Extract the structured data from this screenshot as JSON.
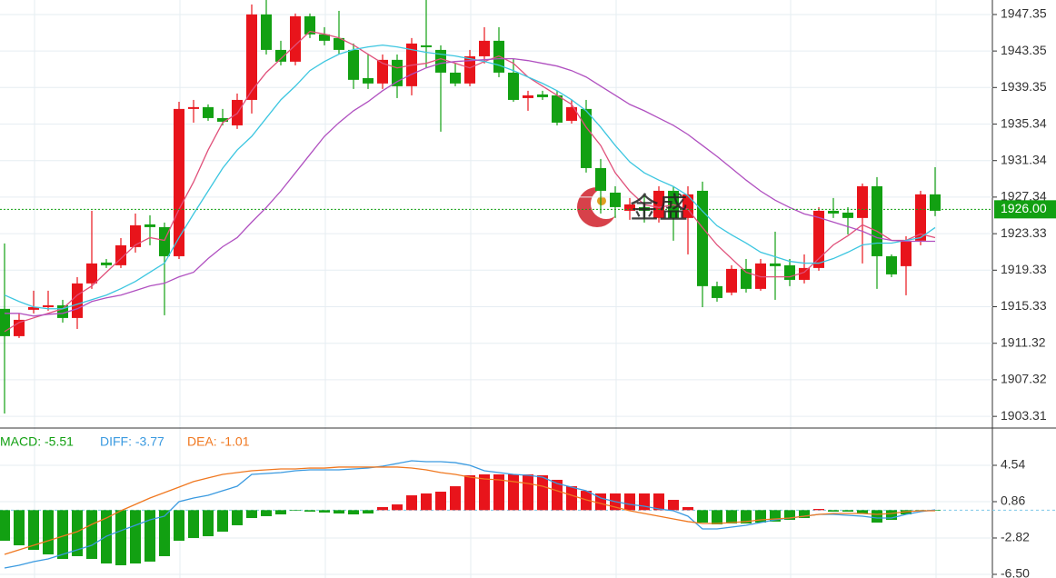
{
  "chart_data": [
    {
      "type": "candlestick",
      "up_color": "#e8141b",
      "down_color": "#12a012",
      "watermark": "金盛",
      "open": [
        1915.09,
        1912.1,
        1914.99,
        1915.28,
        1915.48,
        1914.09,
        1917.88,
        1920.17,
        1919.87,
        1921.86,
        1924.35,
        1924.05,
        1920.86,
        1937.0,
        1937.2,
        1936.0,
        1935.2,
        1937.99,
        1947.36,
        1943.47,
        1942.18,
        1947.16,
        1945.17,
        1944.77,
        1943.47,
        1940.38,
        1939.79,
        1942.38,
        1939.49,
        1943.97,
        1943.47,
        1940.98,
        1939.79,
        1942.77,
        1944.47,
        1940.98,
        1938.19,
        1938.59,
        1938.49,
        1935.7,
        1937.0,
        1930.52,
        1927.83,
        1925.84,
        1926.24,
        1925.05,
        1928.03,
        1925.05,
        1928.03,
        1917.58,
        1916.88,
        1919.47,
        1917.28,
        1920.07,
        1919.87,
        1918.27,
        1919.57,
        1925.84,
        1925.64,
        1925.05,
        1928.53,
        1920.86,
        1919.77,
        1922.56,
        1927.64
      ],
      "high": [
        1922.26,
        1914.59,
        1917.08,
        1917.08,
        1916.08,
        1918.57,
        1925.84,
        1920.56,
        1922.85,
        1925.54,
        1925.35,
        1924.55,
        1937.79,
        1937.99,
        1937.5,
        1937.0,
        1938.69,
        1948.45,
        1948.95,
        1944.47,
        1947.46,
        1947.46,
        1945.96,
        1947.75,
        1944.17,
        1942.97,
        1942.97,
        1942.97,
        1944.77,
        1948.95,
        1943.97,
        1941.98,
        1943.47,
        1945.96,
        1945.96,
        1942.48,
        1938.99,
        1938.99,
        1938.99,
        1937.99,
        1937.99,
        1931.52,
        1928.53,
        1927.24,
        1927.54,
        1928.53,
        1928.53,
        1928.53,
        1929.03,
        1918.08,
        1919.87,
        1920.56,
        1920.56,
        1923.55,
        1920.56,
        1921.06,
        1926.24,
        1927.24,
        1926.24,
        1928.83,
        1929.53,
        1921.06,
        1923.05,
        1928.03,
        1930.62
      ],
      "low": [
        1903.63,
        1911.9,
        1914.59,
        1914.89,
        1913.59,
        1912.89,
        1917.28,
        1919.57,
        1919.57,
        1921.26,
        1922.06,
        1914.39,
        1920.56,
        1935.5,
        1935.7,
        1935.2,
        1934.81,
        1936.5,
        1942.97,
        1941.78,
        1941.78,
        1944.77,
        1943.97,
        1942.97,
        1939.19,
        1939.19,
        1939.19,
        1938.19,
        1938.49,
        1941.48,
        1934.51,
        1939.49,
        1939.49,
        1941.98,
        1940.48,
        1937.79,
        1936.8,
        1937.99,
        1935.2,
        1935.4,
        1930.03,
        1925.54,
        1925.05,
        1924.85,
        1924.55,
        1924.55,
        1922.56,
        1921.06,
        1915.28,
        1915.88,
        1916.58,
        1916.88,
        1917.08,
        1916.08,
        1917.58,
        1917.88,
        1919.27,
        1925.05,
        1923.25,
        1920.07,
        1917.28,
        1918.57,
        1916.58,
        1922.06,
        1925.25
      ],
      "close": [
        1912.1,
        1913.89,
        1915.28,
        1915.48,
        1914.09,
        1917.88,
        1920.07,
        1919.87,
        1922.06,
        1924.25,
        1924.05,
        1920.86,
        1937.0,
        1937.2,
        1936.0,
        1935.6,
        1937.99,
        1947.36,
        1943.47,
        1942.18,
        1947.16,
        1945.17,
        1944.47,
        1943.47,
        1940.19,
        1939.79,
        1942.38,
        1939.49,
        1944.17,
        1943.77,
        1940.98,
        1939.79,
        1942.77,
        1944.47,
        1940.98,
        1937.99,
        1938.49,
        1938.29,
        1935.5,
        1937.2,
        1930.52,
        1928.03,
        1926.24,
        1926.54,
        1925.84,
        1928.03,
        1925.05,
        1927.64,
        1917.58,
        1916.28,
        1919.47,
        1917.28,
        1920.07,
        1919.77,
        1918.27,
        1919.57,
        1925.84,
        1925.54,
        1925.05,
        1928.53,
        1920.86,
        1918.87,
        1922.56,
        1927.64,
        1925.84
      ],
      "series": [
        {
          "color": "#e0507a",
          "values": [
            1912.6,
            1913.6,
            1914.1,
            1914.6,
            1915.1,
            1916.6,
            1917.6,
            1919.1,
            1920.6,
            1922.1,
            1922.9,
            1922.6,
            1926.0,
            1929.0,
            1932.5,
            1935.5,
            1936.5,
            1939.0,
            1941.0,
            1942.5,
            1944.0,
            1945.5,
            1945.2,
            1944.8,
            1944.0,
            1943.0,
            1942.0,
            1941.5,
            1941.8,
            1942.0,
            1942.5,
            1942.0,
            1941.5,
            1942.2,
            1942.8,
            1942.0,
            1940.5,
            1939.5,
            1938.5,
            1937.5,
            1935.0,
            1933.0,
            1930.0,
            1928.0,
            1926.5,
            1926.2,
            1926.5,
            1926.0,
            1924.0,
            1922.1,
            1920.6,
            1919.1,
            1918.6,
            1918.6,
            1918.6,
            1919.1,
            1920.6,
            1922.1,
            1923.1,
            1924.3,
            1923.6,
            1922.6,
            1922.6,
            1923.3,
            1922.9
          ]
        },
        {
          "color": "#3cc6e0",
          "values": [
            1916.6,
            1915.9,
            1915.3,
            1915.1,
            1915.1,
            1915.6,
            1916.1,
            1916.6,
            1917.3,
            1918.1,
            1919.1,
            1920.1,
            1922.9,
            1925.5,
            1928.0,
            1930.5,
            1932.5,
            1934.0,
            1936.0,
            1938.0,
            1939.5,
            1941.2,
            1942.2,
            1943.0,
            1943.5,
            1943.8,
            1944.0,
            1943.8,
            1943.5,
            1943.2,
            1943.0,
            1942.8,
            1942.5,
            1942.2,
            1941.8,
            1941.2,
            1940.5,
            1939.8,
            1939.0,
            1938.0,
            1936.8,
            1935.0,
            1933.0,
            1931.2,
            1930.0,
            1929.2,
            1928.5,
            1927.5,
            1925.8,
            1924.2,
            1923.2,
            1922.3,
            1921.3,
            1920.8,
            1920.3,
            1920.1,
            1920.1,
            1920.6,
            1921.3,
            1922.1,
            1922.3,
            1922.3,
            1922.6,
            1922.9,
            1924.0
          ]
        },
        {
          "color": "#b050c0",
          "values": [
            1914.6,
            1914.6,
            1914.3,
            1914.5,
            1914.6,
            1915.1,
            1915.9,
            1916.3,
            1916.6,
            1917.1,
            1917.6,
            1917.9,
            1918.6,
            1919.1,
            1920.6,
            1921.9,
            1922.9,
            1924.6,
            1926.2,
            1928.0,
            1930.0,
            1932.0,
            1934.0,
            1935.5,
            1936.8,
            1937.8,
            1939.0,
            1940.0,
            1940.8,
            1941.5,
            1942.0,
            1942.2,
            1942.3,
            1942.4,
            1942.5,
            1942.5,
            1942.3,
            1942.0,
            1941.7,
            1941.2,
            1940.5,
            1939.5,
            1938.5,
            1937.5,
            1936.8,
            1936.0,
            1935.2,
            1934.2,
            1933.0,
            1931.8,
            1930.5,
            1929.2,
            1928.0,
            1927.0,
            1926.2,
            1925.5,
            1925.1,
            1924.6,
            1924.1,
            1923.6,
            1922.9,
            1922.6,
            1922.5,
            1922.5,
            1922.5
          ]
        }
      ],
      "current_price": {
        "value": 1926,
        "label": "1926.00"
      },
      "ylim": [
        1902.13,
        1948.94
      ],
      "yticks": [
        1947.35,
        1943.35,
        1939.35,
        1935.34,
        1931.34,
        1927.34,
        1923.33,
        1919.33,
        1915.33,
        1911.32,
        1907.32,
        1903.31
      ],
      "grid": true
    },
    {
      "type": "macd",
      "legend": [
        "MACD: -5.51",
        "DIFF: -3.77",
        "DEA: -1.01"
      ],
      "legend_colors": [
        "#12a012",
        "#3a9ae0",
        "#f07820"
      ],
      "up_color": "#e8141b",
      "down_color": "#12a012",
      "values": [
        -3.1,
        -3.56,
        -4.02,
        -4.48,
        -4.94,
        -4.66,
        -4.94,
        -5.4,
        -5.58,
        -5.4,
        -5.21,
        -4.66,
        -3.1,
        -2.82,
        -2.64,
        -2.18,
        -1.53,
        -0.8,
        -0.61,
        -0.43,
        -0.06,
        -0.15,
        -0.24,
        -0.34,
        -0.43,
        -0.34,
        0.31,
        0.58,
        1.5,
        1.69,
        1.87,
        2.42,
        3.53,
        3.62,
        3.62,
        3.62,
        3.62,
        3.53,
        3.07,
        2.42,
        1.96,
        1.69,
        1.69,
        1.69,
        1.69,
        1.69,
        1.04,
        0.31,
        -1.26,
        -1.44,
        -1.35,
        -1.35,
        -1.26,
        -1.16,
        -0.98,
        -0.8,
        0.12,
        -0.15,
        -0.15,
        -0.34,
        -1.26,
        -0.98,
        -0.43,
        -0.06,
        -0.06
      ],
      "series": [
        {
          "color": "#3a9ae0",
          "values": [
            -5.86,
            -5.58,
            -5.21,
            -4.94,
            -4.48,
            -4.02,
            -3.56,
            -2.64,
            -2.08,
            -1.53,
            -0.98,
            -0.61,
            0.86,
            1.23,
            1.5,
            1.96,
            2.42,
            3.62,
            3.71,
            3.8,
            3.99,
            4.08,
            4.08,
            4.08,
            4.17,
            4.26,
            4.45,
            4.72,
            5.0,
            4.91,
            4.91,
            4.81,
            4.54,
            3.99,
            3.8,
            3.62,
            3.53,
            3.34,
            2.7,
            2.33,
            1.96,
            1.23,
            0.86,
            0.58,
            0.4,
            0.12,
            -0.06,
            -0.61,
            -1.9,
            -1.9,
            -1.72,
            -1.53,
            -1.26,
            -0.98,
            -0.8,
            -0.61,
            -0.43,
            -0.43,
            -0.52,
            -0.61,
            -0.8,
            -0.8,
            -0.43,
            -0.15,
            0.03
          ]
        },
        {
          "color": "#f07820",
          "values": [
            -4.48,
            -4.02,
            -3.56,
            -3.1,
            -2.64,
            -2.18,
            -1.44,
            -0.8,
            -0.06,
            0.58,
            1.23,
            1.78,
            2.33,
            2.89,
            3.26,
            3.62,
            3.8,
            3.99,
            4.08,
            4.17,
            4.17,
            4.26,
            4.26,
            4.36,
            4.36,
            4.36,
            4.36,
            4.36,
            4.26,
            4.08,
            3.8,
            3.62,
            3.34,
            3.16,
            3.07,
            2.89,
            2.7,
            2.42,
            1.96,
            1.5,
            1.04,
            0.67,
            0.31,
            -0.06,
            -0.34,
            -0.61,
            -0.89,
            -1.16,
            -1.35,
            -1.35,
            -1.26,
            -1.16,
            -0.98,
            -0.89,
            -0.8,
            -0.61,
            -0.43,
            -0.34,
            -0.34,
            -0.34,
            -0.43,
            -0.34,
            -0.15,
            -0.06,
            -0.06
          ]
        }
      ],
      "ylim": [
        -6.87,
        8.22
      ],
      "yticks": [
        4.54,
        0.86,
        -2.82,
        {
          "value": -6.5,
          "label": "-6.50"
        }
      ]
    }
  ]
}
